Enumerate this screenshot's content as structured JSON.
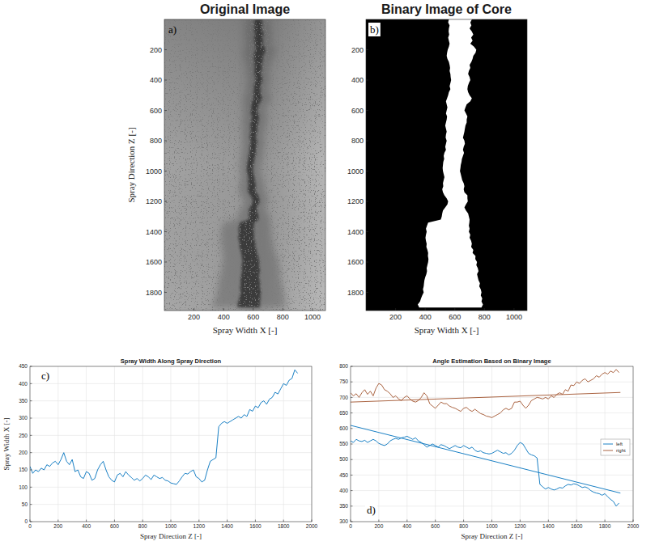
{
  "chart_data": [
    {
      "type": "image",
      "title": "Original Image",
      "panel_label": "a)",
      "xlabel": "Spray Width X [-]",
      "ylabel": "Spray Direction Z [-]",
      "xlim": [
        0,
        1088
      ],
      "ylim": [
        0,
        1920
      ],
      "xticks": [
        200,
        400,
        600,
        800,
        1000
      ],
      "yticks": [
        200,
        400,
        600,
        800,
        1000,
        1200,
        1400,
        1600,
        1800
      ]
    },
    {
      "type": "binary_image",
      "title": "Binary Image of Core",
      "panel_label": "b)",
      "xlabel": "Spray Width X [-]",
      "xlim": [
        0,
        1088
      ],
      "ylim": [
        0,
        1920
      ],
      "xticks": [
        200,
        400,
        600,
        800,
        1000
      ],
      "yticks": [
        200,
        400,
        600,
        800,
        1000,
        1200,
        1400,
        1600,
        1800
      ]
    },
    {
      "type": "line",
      "title": "Spray Width Along Spray Direction",
      "panel_label": "c)",
      "xlabel": "Spray Direction Z [-]",
      "ylabel": "Spray Width X [-]",
      "xlim": [
        0,
        2000
      ],
      "ylim": [
        0,
        450
      ],
      "xticks": [
        0,
        200,
        400,
        600,
        800,
        1000,
        1200,
        1400,
        1600,
        1800,
        2000
      ],
      "yticks": [
        0,
        50,
        100,
        150,
        200,
        250,
        300,
        350,
        400,
        450
      ],
      "grid": true,
      "x": [
        0,
        20,
        40,
        60,
        80,
        100,
        120,
        140,
        160,
        180,
        200,
        220,
        240,
        260,
        280,
        300,
        320,
        340,
        360,
        380,
        400,
        420,
        440,
        460,
        480,
        500,
        520,
        540,
        560,
        580,
        600,
        620,
        640,
        660,
        680,
        700,
        720,
        740,
        760,
        780,
        800,
        820,
        840,
        860,
        880,
        900,
        920,
        940,
        960,
        980,
        1000,
        1020,
        1040,
        1060,
        1080,
        1100,
        1120,
        1140,
        1160,
        1180,
        1200,
        1220,
        1240,
        1260,
        1280,
        1300,
        1320,
        1340,
        1360,
        1380,
        1400,
        1420,
        1440,
        1460,
        1480,
        1500,
        1520,
        1540,
        1560,
        1580,
        1600,
        1620,
        1640,
        1660,
        1680,
        1700,
        1720,
        1740,
        1760,
        1780,
        1800,
        1820,
        1840,
        1860,
        1880,
        1900
      ],
      "series": [
        {
          "color": "#0072bd",
          "values": [
            160,
            140,
            150,
            145,
            155,
            150,
            165,
            160,
            170,
            175,
            165,
            180,
            200,
            175,
            165,
            180,
            145,
            150,
            130,
            125,
            145,
            140,
            120,
            125,
            150,
            165,
            175,
            150,
            130,
            120,
            115,
            135,
            140,
            130,
            145,
            135,
            128,
            120,
            125,
            118,
            125,
            135,
            130,
            122,
            135,
            130,
            125,
            128,
            120,
            118,
            112,
            110,
            108,
            118,
            130,
            140,
            138,
            145,
            150,
            130,
            125,
            115,
            120,
            150,
            175,
            180,
            185,
            275,
            285,
            290,
            285,
            290,
            295,
            300,
            305,
            300,
            310,
            305,
            325,
            320,
            335,
            330,
            345,
            350,
            340,
            355,
            360,
            375,
            370,
            385,
            400,
            395,
            410,
            415,
            440,
            430
          ]
        }
      ]
    },
    {
      "type": "line",
      "title": "Angle Estimation Based on Binary Image",
      "panel_label": "d)",
      "xlabel": "Spray Direction Z [-]",
      "xlim": [
        0,
        2000
      ],
      "ylim": [
        300,
        800
      ],
      "xticks": [
        0,
        200,
        400,
        600,
        800,
        1000,
        1200,
        1400,
        1600,
        1800,
        2000
      ],
      "yticks": [
        300,
        350,
        400,
        450,
        500,
        550,
        600,
        650,
        700,
        750,
        800
      ],
      "grid": true,
      "legend": "east",
      "x": [
        0,
        20,
        40,
        60,
        80,
        100,
        120,
        140,
        160,
        180,
        200,
        220,
        240,
        260,
        280,
        300,
        320,
        340,
        360,
        380,
        400,
        420,
        440,
        460,
        480,
        500,
        520,
        540,
        560,
        580,
        600,
        620,
        640,
        660,
        680,
        700,
        720,
        740,
        760,
        780,
        800,
        820,
        840,
        860,
        880,
        900,
        920,
        940,
        960,
        980,
        1000,
        1020,
        1040,
        1060,
        1080,
        1100,
        1120,
        1140,
        1160,
        1180,
        1200,
        1220,
        1240,
        1260,
        1280,
        1300,
        1320,
        1340,
        1360,
        1380,
        1400,
        1420,
        1440,
        1460,
        1480,
        1500,
        1520,
        1540,
        1560,
        1580,
        1600,
        1620,
        1640,
        1660,
        1680,
        1700,
        1720,
        1740,
        1760,
        1780,
        1800,
        1820,
        1840,
        1860,
        1880,
        1900
      ],
      "series": [
        {
          "name": "left",
          "color": "#0072bd",
          "values": [
            560,
            555,
            565,
            560,
            558,
            562,
            555,
            560,
            565,
            560,
            552,
            548,
            545,
            550,
            560,
            565,
            568,
            565,
            570,
            572,
            575,
            570,
            565,
            570,
            560,
            555,
            548,
            540,
            545,
            550,
            545,
            540,
            548,
            545,
            540,
            535,
            540,
            545,
            540,
            538,
            545,
            540,
            535,
            540,
            530,
            525,
            528,
            522,
            520,
            518,
            520,
            525,
            530,
            525,
            520,
            522,
            515,
            520,
            530,
            545,
            555,
            550,
            535,
            520,
            515,
            512,
            505,
            420,
            412,
            405,
            410,
            405,
            402,
            405,
            410,
            408,
            415,
            420,
            418,
            422,
            420,
            415,
            410,
            412,
            408,
            400,
            395,
            392,
            390,
            385,
            390,
            380,
            372,
            365,
            350,
            360
          ]
        },
        {
          "name": "right",
          "color": "#a0522d",
          "values": [
            715,
            705,
            712,
            700,
            715,
            725,
            710,
            720,
            705,
            730,
            745,
            740,
            725,
            720,
            712,
            700,
            705,
            695,
            690,
            700,
            705,
            695,
            688,
            685,
            690,
            700,
            715,
            705,
            680,
            672,
            665,
            675,
            685,
            680,
            680,
            672,
            668,
            665,
            660,
            655,
            665,
            668,
            660,
            655,
            662,
            655,
            648,
            645,
            640,
            638,
            635,
            640,
            645,
            650,
            660,
            665,
            660,
            665,
            685,
            685,
            688,
            675,
            665,
            675,
            690,
            695,
            700,
            698,
            695,
            700,
            695,
            705,
            700,
            710,
            715,
            710,
            725,
            720,
            740,
            738,
            750,
            745,
            755,
            760,
            750,
            755,
            760,
            770,
            765,
            775,
            780,
            775,
            785,
            780,
            790,
            780
          ]
        },
        {
          "color": "#0072bd",
          "x": [
            0,
            1910
          ],
          "values": [
            610,
            392
          ]
        },
        {
          "color": "#a0522d",
          "x": [
            0,
            1910
          ],
          "values": [
            685,
            716
          ]
        }
      ]
    }
  ]
}
